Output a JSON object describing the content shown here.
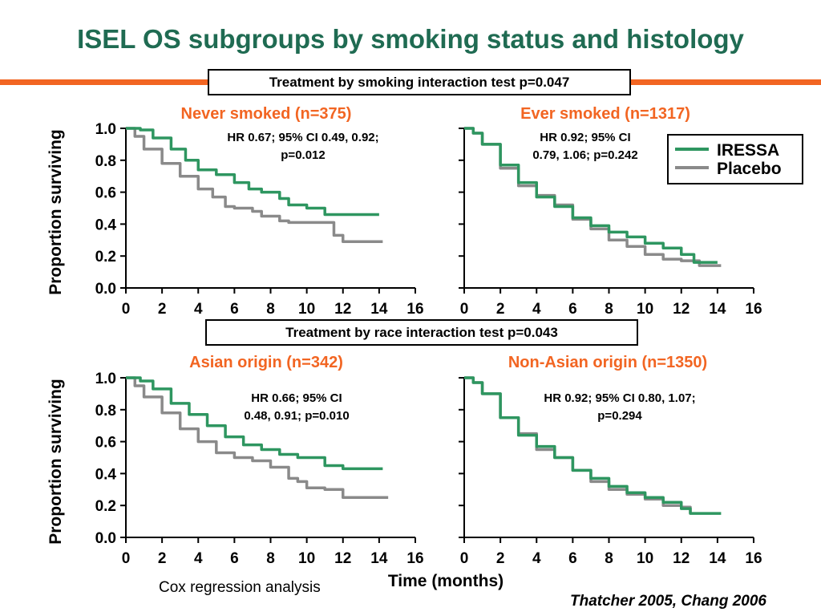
{
  "title": "ISEL OS subgroups by smoking status and histology",
  "interaction_tests": [
    "Treatment by smoking interaction test p=0.047",
    "Treatment by race interaction test p=0.043"
  ],
  "footnote": "Cox regression analysis",
  "citation": "Thatcher 2005, Chang 2006",
  "colors": {
    "iressa": "#2e9660",
    "placebo": "#8a8a8a",
    "subtitle": "#f26522",
    "title": "#1f6b52",
    "bar": "#f26522"
  },
  "chart_data": [
    {
      "type": "line",
      "title": "Never smoked (n=375)",
      "annotation": [
        "HR 0.67; 95% CI 0.49, 0.92;",
        "p=0.012"
      ],
      "ylabel": "Proportion surviving",
      "xlabel": "",
      "xlim": [
        0,
        16
      ],
      "ylim": [
        0,
        1
      ],
      "xticks": [
        "0",
        "2",
        "4",
        "6",
        "8",
        "10",
        "12",
        "14",
        "16"
      ],
      "yticks": [
        "0.0",
        "0.2",
        "0.4",
        "0.6",
        "0.8",
        "1.0"
      ],
      "series": [
        {
          "name": "IRESSA",
          "x": [
            0,
            0.8,
            1.5,
            2.5,
            3.3,
            4,
            5,
            6,
            6.8,
            7.5,
            8.5,
            9,
            10,
            10.5,
            11,
            12,
            13,
            14
          ],
          "y": [
            1,
            0.99,
            0.94,
            0.87,
            0.8,
            0.74,
            0.71,
            0.66,
            0.62,
            0.6,
            0.56,
            0.52,
            0.5,
            0.5,
            0.46,
            0.46,
            0.46,
            0.46
          ]
        },
        {
          "name": "Placebo",
          "x": [
            0,
            0.5,
            1,
            2,
            3,
            4,
            4.8,
            5.5,
            6,
            7,
            7.5,
            8.5,
            9,
            10,
            11,
            11.5,
            12,
            13,
            14.2
          ],
          "y": [
            1,
            0.95,
            0.87,
            0.78,
            0.7,
            0.62,
            0.57,
            0.51,
            0.5,
            0.48,
            0.45,
            0.42,
            0.41,
            0.41,
            0.41,
            0.33,
            0.29,
            0.29,
            0.29
          ]
        }
      ]
    },
    {
      "type": "line",
      "title": "Ever smoked (n=1317)",
      "annotation": [
        "HR 0.92; 95% CI",
        "0.79, 1.06; p=0.242"
      ],
      "ylabel": "",
      "xlabel": "",
      "xlim": [
        0,
        16
      ],
      "ylim": [
        0,
        1
      ],
      "xticks": [
        "0",
        "2",
        "4",
        "6",
        "8",
        "10",
        "12",
        "14",
        "16"
      ],
      "yticks": [],
      "series": [
        {
          "name": "IRESSA",
          "x": [
            0,
            0.5,
            1,
            2,
            3,
            4,
            5,
            6,
            7,
            8,
            9,
            10,
            11,
            12,
            12.7,
            13.5,
            14
          ],
          "y": [
            1,
            0.97,
            0.9,
            0.77,
            0.66,
            0.57,
            0.51,
            0.44,
            0.39,
            0.35,
            0.32,
            0.28,
            0.25,
            0.21,
            0.16,
            0.16,
            0.16
          ]
        },
        {
          "name": "Placebo",
          "x": [
            0,
            0.5,
            1,
            2,
            3,
            4,
            5,
            6,
            7,
            8,
            9,
            10,
            11,
            12,
            13,
            14.2
          ],
          "y": [
            1,
            0.97,
            0.9,
            0.75,
            0.64,
            0.58,
            0.52,
            0.43,
            0.37,
            0.3,
            0.26,
            0.21,
            0.18,
            0.17,
            0.14,
            0.14
          ]
        }
      ]
    },
    {
      "type": "line",
      "title": "Asian origin (n=342)",
      "annotation": [
        "HR 0.66; 95% CI",
        "0.48, 0.91; p=0.010"
      ],
      "ylabel": "Proportion surviving",
      "xlabel": "",
      "xlim": [
        0,
        16
      ],
      "ylim": [
        0,
        1
      ],
      "xticks": [
        "0",
        "2",
        "4",
        "6",
        "8",
        "10",
        "12",
        "14",
        "16"
      ],
      "yticks": [
        "0.0",
        "0.2",
        "0.4",
        "0.6",
        "0.8",
        "1.0"
      ],
      "series": [
        {
          "name": "IRESSA",
          "x": [
            0,
            0.8,
            1.5,
            2.5,
            3.5,
            4.5,
            5.5,
            6.5,
            7.5,
            8.5,
            9.5,
            10.5,
            11,
            12,
            13,
            14.2
          ],
          "y": [
            1,
            0.98,
            0.93,
            0.84,
            0.77,
            0.7,
            0.63,
            0.58,
            0.55,
            0.52,
            0.5,
            0.5,
            0.45,
            0.43,
            0.43,
            0.43
          ]
        },
        {
          "name": "Placebo",
          "x": [
            0,
            0.5,
            1,
            2,
            3,
            4,
            5,
            6,
            7,
            8,
            9,
            9.5,
            10,
            11,
            12,
            13,
            14.5
          ],
          "y": [
            1,
            0.95,
            0.88,
            0.78,
            0.68,
            0.6,
            0.53,
            0.5,
            0.48,
            0.44,
            0.37,
            0.35,
            0.31,
            0.3,
            0.25,
            0.25,
            0.25
          ]
        }
      ]
    },
    {
      "type": "line",
      "title": "Non-Asian origin (n=1350)",
      "annotation": [
        "HR 0.92; 95% CI 0.80, 1.07;",
        "p=0.294"
      ],
      "ylabel": "",
      "xlabel": "Time (months)",
      "xlim": [
        0,
        16
      ],
      "ylim": [
        0,
        1
      ],
      "xticks": [
        "0",
        "2",
        "4",
        "6",
        "8",
        "10",
        "12",
        "14",
        "16"
      ],
      "yticks": [],
      "series": [
        {
          "name": "IRESSA",
          "x": [
            0,
            0.5,
            1,
            2,
            3,
            4,
            5,
            6,
            7,
            8,
            9,
            10,
            11,
            12,
            12.5,
            13.5,
            14.2
          ],
          "y": [
            1,
            0.97,
            0.9,
            0.75,
            0.64,
            0.57,
            0.5,
            0.42,
            0.37,
            0.32,
            0.28,
            0.25,
            0.22,
            0.18,
            0.15,
            0.15,
            0.15
          ]
        },
        {
          "name": "Placebo",
          "x": [
            0,
            0.5,
            1,
            2,
            3,
            4,
            5,
            6,
            7,
            8,
            9,
            10,
            11,
            12,
            12.5
          ],
          "y": [
            1,
            0.97,
            0.9,
            0.75,
            0.65,
            0.55,
            0.5,
            0.42,
            0.35,
            0.3,
            0.27,
            0.24,
            0.2,
            0.19,
            0.15
          ]
        }
      ]
    }
  ],
  "legend": {
    "placement": "right of top-right panel",
    "entries": [
      "IRESSA",
      "Placebo"
    ]
  }
}
